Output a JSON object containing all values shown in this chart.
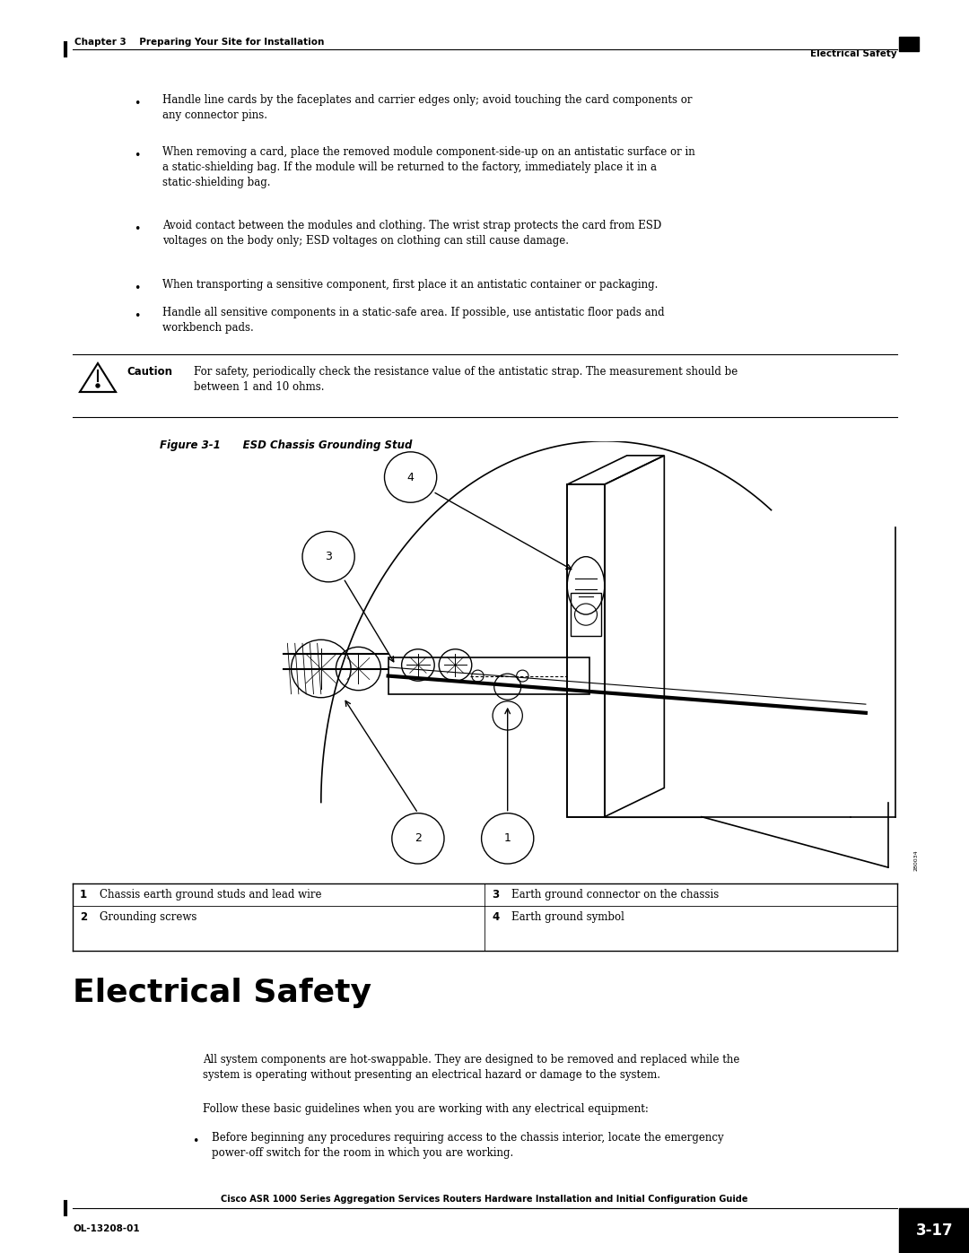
{
  "bg_color": "#ffffff",
  "page_width": 10.8,
  "page_height": 13.97,
  "header_left": "Chapter 3    Preparing Your Site for Installation",
  "header_right": "Electrical Safety",
  "footer_center": "Cisco ASR 1000 Series Aggregation Services Routers Hardware Installation and Initial Configuration Guide",
  "footer_left": "OL-13208-01",
  "footer_right": "3-17",
  "bullet_items": [
    "Handle line cards by the faceplates and carrier edges only; avoid touching the card components or\nany connector pins.",
    "When removing a card, place the removed module component-side-up on an antistatic surface or in\na static-shielding bag. If the module will be returned to the factory, immediately place it in a\nstatic-shielding bag.",
    "Avoid contact between the modules and clothing. The wrist strap protects the card from ESD\nvoltages on the body only; ESD voltages on clothing can still cause damage.",
    "When transporting a sensitive component, first place it an antistatic container or packaging.",
    "Handle all sensitive components in a static-safe area. If possible, use antistatic floor pads and\nworkbench pads."
  ],
  "caution_label": "Caution",
  "caution_text": "For safety, periodically check the resistance value of the antistatic strap. The measurement should be\nbetween 1 and 10 ohms.",
  "figure_label": "Figure 3-1",
  "figure_title": "     ESD Chassis Grounding Stud",
  "table_rows": [
    [
      "1",
      "Chassis earth ground studs and lead wire",
      "3",
      "Earth ground connector on the chassis"
    ],
    [
      "2",
      "Grounding screws",
      "4",
      "Earth ground symbol"
    ]
  ],
  "section_title": "Electrical Safety",
  "section_body_1": "All system components are hot-swappable. They are designed to be removed and replaced while the\nsystem is operating without presenting an electrical hazard or damage to the system.",
  "section_body_2": "Follow these basic guidelines when you are working with any electrical equipment:",
  "section_bullet": "Before beginning any procedures requiring access to the chassis interior, locate the emergency\npower-off switch for the room in which you are working."
}
